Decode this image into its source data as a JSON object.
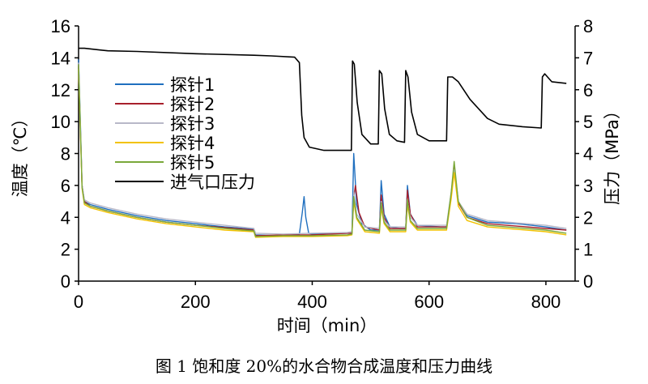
{
  "caption": "图 1 饱和度 20%的水合物合成温度和压力曲线",
  "chart_data": {
    "type": "line",
    "xlabel": "时间（min）",
    "ylabel_left": "温度（℃）",
    "ylabel_right": "压力（MPa）",
    "xlim": [
      0,
      850
    ],
    "ylim_left": [
      0,
      16
    ],
    "ylim_right": [
      0,
      8
    ],
    "xticks": [
      0,
      200,
      400,
      600,
      800
    ],
    "yticks_left": [
      0,
      2,
      4,
      6,
      8,
      10,
      12,
      14,
      16
    ],
    "yticks_right": [
      0,
      1,
      2,
      3,
      4,
      5,
      6,
      7,
      8
    ],
    "legend_position": "upper-left",
    "series": [
      {
        "name": "探针1",
        "color": "#1f6fbf",
        "axis": "left",
        "points": [
          [
            0,
            13.9
          ],
          [
            3,
            10
          ],
          [
            6,
            6
          ],
          [
            10,
            5.0
          ],
          [
            20,
            4.8
          ],
          [
            50,
            4.5
          ],
          [
            100,
            4.1
          ],
          [
            150,
            3.8
          ],
          [
            200,
            3.6
          ],
          [
            250,
            3.4
          ],
          [
            300,
            3.25
          ],
          [
            303,
            2.9
          ],
          [
            350,
            2.85
          ],
          [
            378,
            2.95
          ],
          [
            383,
            4.3
          ],
          [
            386,
            5.3
          ],
          [
            389,
            4.0
          ],
          [
            394,
            3.0
          ],
          [
            400,
            2.95
          ],
          [
            460,
            3.0
          ],
          [
            468,
            3.0
          ],
          [
            471,
            8.0
          ],
          [
            476,
            4.8
          ],
          [
            485,
            3.6
          ],
          [
            500,
            3.2
          ],
          [
            515,
            3.2
          ],
          [
            518,
            6.3
          ],
          [
            523,
            4.2
          ],
          [
            533,
            3.4
          ],
          [
            550,
            3.3
          ],
          [
            560,
            3.3
          ],
          [
            563,
            6.0
          ],
          [
            568,
            4.2
          ],
          [
            580,
            3.5
          ],
          [
            620,
            3.4
          ],
          [
            630,
            3.4
          ],
          [
            638,
            5.5
          ],
          [
            643,
            7.2
          ],
          [
            650,
            5.0
          ],
          [
            665,
            4.1
          ],
          [
            700,
            3.7
          ],
          [
            750,
            3.6
          ],
          [
            800,
            3.4
          ],
          [
            835,
            3.2
          ]
        ]
      },
      {
        "name": "探针2",
        "color": "#a8202c",
        "axis": "left",
        "points": [
          [
            0,
            13.5
          ],
          [
            3,
            9.6
          ],
          [
            6,
            6
          ],
          [
            10,
            5.0
          ],
          [
            20,
            4.7
          ],
          [
            50,
            4.4
          ],
          [
            100,
            4.0
          ],
          [
            150,
            3.7
          ],
          [
            200,
            3.5
          ],
          [
            250,
            3.35
          ],
          [
            300,
            3.2
          ],
          [
            303,
            2.85
          ],
          [
            350,
            2.9
          ],
          [
            400,
            2.9
          ],
          [
            460,
            3.0
          ],
          [
            468,
            3.0
          ],
          [
            471,
            5.2
          ],
          [
            474,
            6.0
          ],
          [
            480,
            4.3
          ],
          [
            490,
            3.4
          ],
          [
            515,
            3.2
          ],
          [
            518,
            5.4
          ],
          [
            523,
            4.0
          ],
          [
            533,
            3.3
          ],
          [
            560,
            3.3
          ],
          [
            563,
            5.7
          ],
          [
            568,
            4.2
          ],
          [
            580,
            3.4
          ],
          [
            630,
            3.4
          ],
          [
            638,
            5.4
          ],
          [
            643,
            7.1
          ],
          [
            650,
            4.9
          ],
          [
            665,
            4.0
          ],
          [
            700,
            3.6
          ],
          [
            800,
            3.3
          ],
          [
            835,
            3.2
          ]
        ]
      },
      {
        "name": "探针3",
        "color": "#b8b8c8",
        "axis": "left",
        "points": [
          [
            0,
            13.7
          ],
          [
            3,
            9.8
          ],
          [
            6,
            6
          ],
          [
            10,
            5.1
          ],
          [
            20,
            4.9
          ],
          [
            50,
            4.6
          ],
          [
            100,
            4.2
          ],
          [
            150,
            3.9
          ],
          [
            200,
            3.7
          ],
          [
            250,
            3.5
          ],
          [
            300,
            3.3
          ],
          [
            303,
            3.0
          ],
          [
            350,
            2.95
          ],
          [
            400,
            3.0
          ],
          [
            460,
            3.05
          ],
          [
            468,
            3.1
          ],
          [
            471,
            5.6
          ],
          [
            476,
            4.2
          ],
          [
            490,
            3.4
          ],
          [
            515,
            3.3
          ],
          [
            518,
            5.0
          ],
          [
            523,
            3.8
          ],
          [
            533,
            3.4
          ],
          [
            560,
            3.4
          ],
          [
            563,
            5.0
          ],
          [
            568,
            4.0
          ],
          [
            580,
            3.5
          ],
          [
            630,
            3.5
          ],
          [
            638,
            5.6
          ],
          [
            643,
            7.0
          ],
          [
            650,
            5.0
          ],
          [
            665,
            4.2
          ],
          [
            700,
            3.8
          ],
          [
            800,
            3.5
          ],
          [
            835,
            3.3
          ]
        ]
      },
      {
        "name": "探针4",
        "color": "#f2c200",
        "axis": "left",
        "points": [
          [
            0,
            13.3
          ],
          [
            3,
            9.4
          ],
          [
            6,
            5.8
          ],
          [
            10,
            4.8
          ],
          [
            20,
            4.6
          ],
          [
            50,
            4.3
          ],
          [
            100,
            3.9
          ],
          [
            150,
            3.6
          ],
          [
            200,
            3.4
          ],
          [
            250,
            3.2
          ],
          [
            300,
            3.1
          ],
          [
            303,
            2.75
          ],
          [
            350,
            2.8
          ],
          [
            400,
            2.8
          ],
          [
            460,
            2.85
          ],
          [
            468,
            2.9
          ],
          [
            471,
            5.0
          ],
          [
            476,
            3.9
          ],
          [
            490,
            3.1
          ],
          [
            515,
            3.0
          ],
          [
            518,
            4.6
          ],
          [
            523,
            3.6
          ],
          [
            533,
            3.1
          ],
          [
            560,
            3.1
          ],
          [
            563,
            4.8
          ],
          [
            568,
            3.7
          ],
          [
            580,
            3.2
          ],
          [
            630,
            3.2
          ],
          [
            638,
            5.2
          ],
          [
            643,
            6.8
          ],
          [
            650,
            4.7
          ],
          [
            665,
            3.8
          ],
          [
            700,
            3.4
          ],
          [
            800,
            3.1
          ],
          [
            835,
            2.9
          ]
        ]
      },
      {
        "name": "探针5",
        "color": "#7aa83a",
        "axis": "left",
        "points": [
          [
            0,
            13.6
          ],
          [
            3,
            9.7
          ],
          [
            6,
            5.9
          ],
          [
            10,
            4.9
          ],
          [
            20,
            4.7
          ],
          [
            50,
            4.4
          ],
          [
            100,
            4.0
          ],
          [
            150,
            3.7
          ],
          [
            200,
            3.5
          ],
          [
            250,
            3.3
          ],
          [
            300,
            3.15
          ],
          [
            303,
            2.8
          ],
          [
            350,
            2.85
          ],
          [
            400,
            2.85
          ],
          [
            460,
            2.9
          ],
          [
            468,
            2.95
          ],
          [
            471,
            5.3
          ],
          [
            476,
            4.0
          ],
          [
            490,
            3.2
          ],
          [
            515,
            3.1
          ],
          [
            518,
            4.9
          ],
          [
            523,
            3.7
          ],
          [
            533,
            3.2
          ],
          [
            560,
            3.2
          ],
          [
            563,
            5.1
          ],
          [
            568,
            3.8
          ],
          [
            580,
            3.3
          ],
          [
            630,
            3.3
          ],
          [
            638,
            5.6
          ],
          [
            643,
            7.5
          ],
          [
            650,
            5.0
          ],
          [
            665,
            4.0
          ],
          [
            700,
            3.5
          ],
          [
            800,
            3.2
          ],
          [
            835,
            3.0
          ]
        ]
      },
      {
        "name": "进气口压力",
        "color": "#000000",
        "axis": "right",
        "points": [
          [
            0,
            7.3
          ],
          [
            10,
            7.3
          ],
          [
            50,
            7.22
          ],
          [
            100,
            7.2
          ],
          [
            200,
            7.13
          ],
          [
            300,
            7.08
          ],
          [
            330,
            7.06
          ],
          [
            370,
            7.02
          ],
          [
            378,
            6.85
          ],
          [
            382,
            5.2
          ],
          [
            386,
            4.5
          ],
          [
            395,
            4.2
          ],
          [
            420,
            4.1
          ],
          [
            467,
            4.1
          ],
          [
            469,
            6.9
          ],
          [
            472,
            6.8
          ],
          [
            477,
            5.6
          ],
          [
            485,
            4.6
          ],
          [
            500,
            4.3
          ],
          [
            513,
            4.3
          ],
          [
            515,
            6.6
          ],
          [
            519,
            6.5
          ],
          [
            524,
            5.4
          ],
          [
            532,
            4.6
          ],
          [
            545,
            4.4
          ],
          [
            558,
            4.35
          ],
          [
            560,
            6.6
          ],
          [
            564,
            6.4
          ],
          [
            570,
            5.3
          ],
          [
            580,
            4.6
          ],
          [
            600,
            4.4
          ],
          [
            630,
            4.4
          ],
          [
            632,
            6.4
          ],
          [
            640,
            6.4
          ],
          [
            650,
            6.25
          ],
          [
            670,
            5.7
          ],
          [
            700,
            5.1
          ],
          [
            720,
            4.92
          ],
          [
            760,
            4.84
          ],
          [
            792,
            4.8
          ],
          [
            794,
            6.4
          ],
          [
            798,
            6.5
          ],
          [
            810,
            6.25
          ],
          [
            835,
            6.2
          ]
        ]
      }
    ]
  }
}
